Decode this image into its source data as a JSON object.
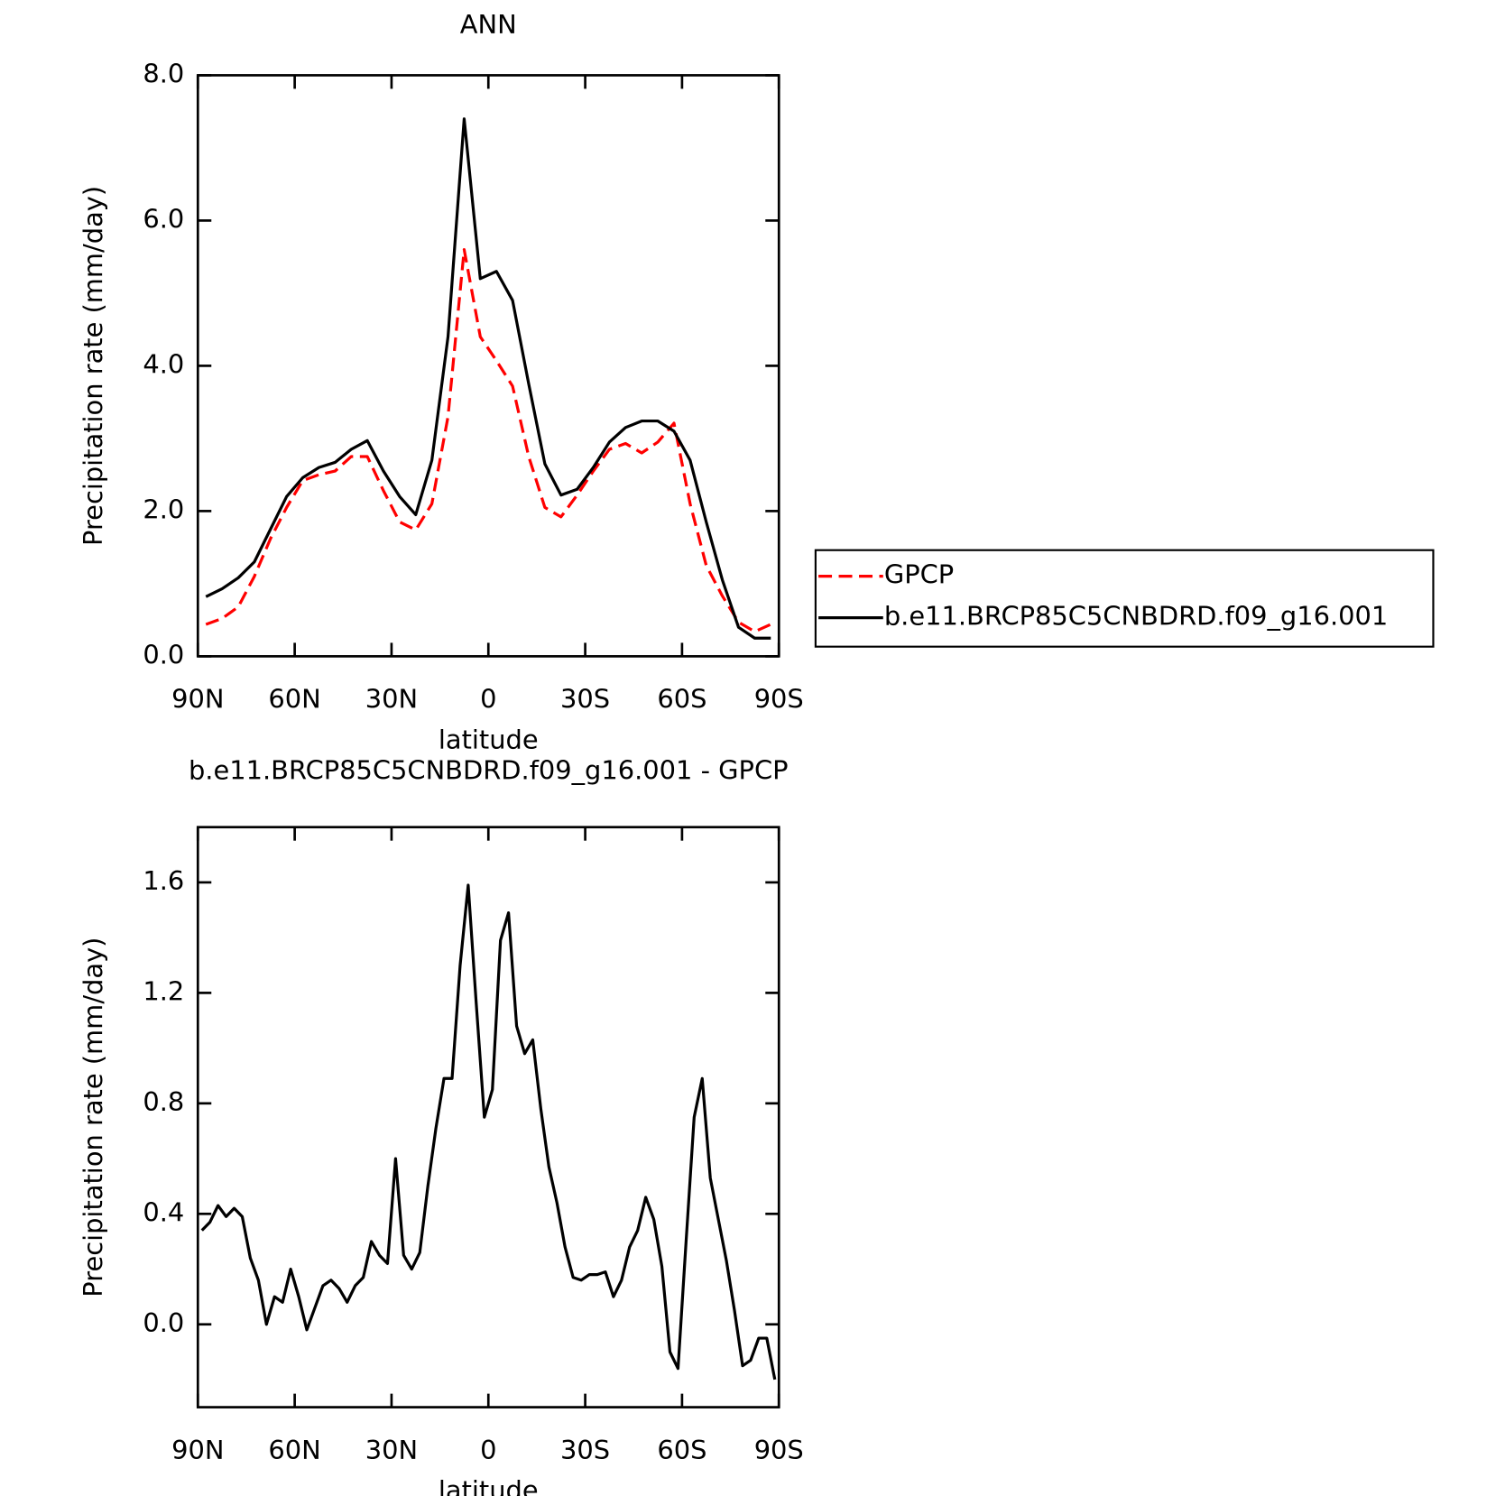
{
  "chart_data": [
    {
      "type": "line",
      "title": "ANN",
      "xlabel": "latitude",
      "ylabel": "Precipitation rate (mm/day)",
      "x": [
        87.5,
        82.5,
        77.5,
        72.5,
        67.5,
        62.5,
        57.5,
        52.5,
        47.5,
        42.5,
        37.5,
        32.5,
        27.5,
        22.5,
        17.5,
        12.5,
        7.5,
        2.5,
        -2.5,
        -7.5,
        -12.5,
        -17.5,
        -22.5,
        -27.5,
        -32.5,
        -37.5,
        -42.5,
        -47.5,
        -52.5,
        -57.5,
        -62.5,
        -67.5,
        -72.5,
        -77.5,
        -82.5,
        -87.5
      ],
      "series": [
        {
          "name": "GPCP",
          "color": "#ff0000",
          "linestyle": "dashed",
          "values": [
            0.44,
            0.52,
            0.68,
            1.1,
            1.62,
            2.05,
            2.42,
            2.5,
            2.55,
            2.75,
            2.75,
            2.28,
            1.85,
            1.74,
            2.1,
            3.3,
            5.6,
            4.4,
            4.07,
            3.72,
            2.75,
            2.05,
            1.92,
            2.22,
            2.55,
            2.85,
            2.93,
            2.8,
            2.95,
            3.21,
            2.1,
            1.25,
            0.83,
            0.47,
            0.34,
            0.44
          ]
        },
        {
          "name": "b.e11.BRCP85C5CNBDRD.f09_g16.001",
          "color": "#000000",
          "linestyle": "solid",
          "values": [
            0.82,
            0.93,
            1.08,
            1.3,
            1.75,
            2.2,
            2.46,
            2.6,
            2.67,
            2.85,
            2.97,
            2.55,
            2.2,
            1.95,
            2.7,
            4.4,
            7.4,
            5.2,
            5.3,
            4.9,
            3.75,
            2.65,
            2.22,
            2.3,
            2.6,
            2.95,
            3.15,
            3.24,
            3.24,
            3.1,
            2.7,
            1.85,
            1.05,
            0.4,
            0.25,
            0.25
          ]
        }
      ],
      "xlim": [
        90,
        -90
      ],
      "xticks": [
        {
          "value": 90,
          "label": "90N"
        },
        {
          "value": 60,
          "label": "60N"
        },
        {
          "value": 30,
          "label": "30N"
        },
        0,
        {
          "value": -30,
          "label": "30S"
        },
        {
          "value": -60,
          "label": "60S"
        },
        {
          "value": -90,
          "label": "90S"
        }
      ],
      "ylim": [
        0,
        8
      ],
      "yticks": [
        {
          "value": 0,
          "label": "0.0"
        },
        {
          "value": 2,
          "label": "2.0"
        },
        {
          "value": 4,
          "label": "4.0"
        },
        {
          "value": 6,
          "label": "6.0"
        },
        {
          "value": 8,
          "label": "8.0"
        }
      ],
      "legend": "right"
    },
    {
      "type": "line",
      "title": "b.e11.BRCP85C5CNBDRD.f09_g16.001 - GPCP",
      "xlabel": "latitude",
      "ylabel": "Precipitation rate (mm/day)",
      "x": [
        88.75,
        86.25,
        83.75,
        81.25,
        78.75,
        76.25,
        73.75,
        71.25,
        68.75,
        66.25,
        63.75,
        61.25,
        58.75,
        56.25,
        53.75,
        51.25,
        48.75,
        46.25,
        43.75,
        41.25,
        38.75,
        36.25,
        33.75,
        31.25,
        28.75,
        26.25,
        23.75,
        21.25,
        18.75,
        16.25,
        13.75,
        11.25,
        8.75,
        6.25,
        3.75,
        1.25,
        -1.25,
        -3.75,
        -6.25,
        -8.75,
        -11.25,
        -13.75,
        -16.25,
        -18.75,
        -21.25,
        -23.75,
        -26.25,
        -28.75,
        -31.25,
        -33.75,
        -36.25,
        -38.75,
        -41.25,
        -43.75,
        -46.25,
        -48.75,
        -51.25,
        -53.75,
        -56.25,
        -58.75,
        -61.25,
        -63.75,
        -66.25,
        -68.75,
        -71.25,
        -73.75,
        -76.25,
        -78.75,
        -81.25,
        -83.75,
        -86.25,
        -88.75
      ],
      "color": "#000000",
      "values": [
        0.34,
        0.37,
        0.43,
        0.39,
        0.42,
        0.39,
        0.24,
        0.16,
        0.0,
        0.1,
        0.08,
        0.2,
        0.1,
        -0.02,
        0.06,
        0.14,
        0.16,
        0.13,
        0.08,
        0.14,
        0.17,
        0.3,
        0.25,
        0.22,
        0.6,
        0.25,
        0.2,
        0.26,
        0.5,
        0.71,
        0.89,
        0.89,
        1.3,
        1.59,
        1.16,
        0.75,
        0.85,
        1.39,
        1.49,
        1.08,
        0.98,
        1.03,
        0.78,
        0.57,
        0.44,
        0.28,
        0.17,
        0.16,
        0.18,
        0.18,
        0.19,
        0.1,
        0.16,
        0.28,
        0.34,
        0.46,
        0.38,
        0.21,
        -0.1,
        -0.16,
        0.3,
        0.75,
        0.89,
        0.53,
        0.38,
        0.23,
        0.05,
        -0.15,
        -0.13,
        -0.05,
        -0.05,
        -0.2
      ],
      "xlim": [
        90,
        -90
      ],
      "xticks": [
        {
          "value": 90,
          "label": "90N"
        },
        {
          "value": 60,
          "label": "60N"
        },
        {
          "value": 30,
          "label": "30N"
        },
        0,
        {
          "value": -30,
          "label": "30S"
        },
        {
          "value": -60,
          "label": "60S"
        },
        {
          "value": -90,
          "label": "90S"
        }
      ],
      "ylim": [
        -0.3,
        1.8
      ],
      "yticks": [
        {
          "value": 0,
          "label": "0.0"
        },
        0.4,
        0.8,
        1.2,
        1.6
      ]
    }
  ]
}
